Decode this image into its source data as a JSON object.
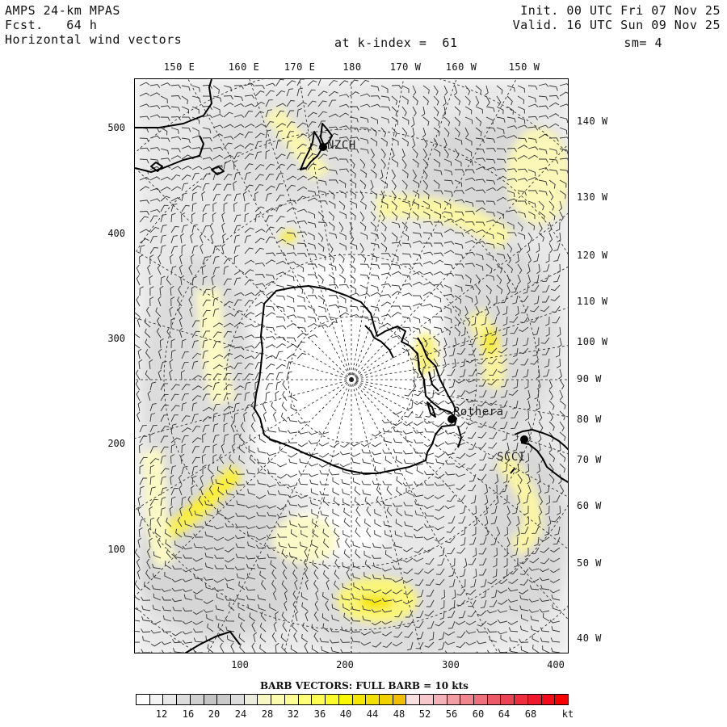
{
  "header": {
    "model": "AMPS 24-km MPAS",
    "forecast_label": "Fcst.",
    "forecast_value": "64 h",
    "field": "Horizontal wind vectors",
    "init": "Init. 00 UTC Fri 07 Nov 25",
    "valid": "Valid. 16 UTC Sun 09 Nov 25",
    "level": "at k-index =  61",
    "smoothing": "sm= 4"
  },
  "longitude_top": [
    "150 E",
    "160 E",
    "170 E",
    "180",
    "170 W",
    "160 W",
    "150 W"
  ],
  "longitude_right": [
    "140 W",
    "130 W",
    "120 W",
    "110 W",
    "100 W",
    "90 W",
    "80 W",
    "70 W",
    "60 W",
    "50 W",
    "40 W"
  ],
  "grid_y_ticks": [
    "500",
    "400",
    "300",
    "200",
    "100"
  ],
  "grid_x_ticks": [
    "100",
    "200",
    "300",
    "400"
  ],
  "stations": [
    {
      "id": "NZCH",
      "label": "NZCH"
    },
    {
      "id": "Rothera",
      "label": "Rothera"
    },
    {
      "id": "SCCI",
      "label": "SCCI"
    }
  ],
  "legend": {
    "title": "BARB VECTORS:  FULL BARB = 10 kts",
    "labels": [
      "12",
      "16",
      "20",
      "24",
      "28",
      "32",
      "36",
      "40",
      "44",
      "48",
      "52",
      "56",
      "60",
      "64",
      "68",
      "kt"
    ],
    "colors": [
      "#ffffff",
      "#f4f4f4",
      "#e8e8e8",
      "#dcdcdc",
      "#d0d0d0",
      "#c4c4c4",
      "#cacaca",
      "#dcdcdc",
      "#ececdc",
      "#f7f7c4",
      "#fbfbb0",
      "#fdfd96",
      "#ffff78",
      "#fefe50",
      "#fcfc28",
      "#f8f800",
      "#f4e800",
      "#f1e100",
      "#f0d200",
      "#f0c000",
      "#f8dfe0",
      "#f6c8cc",
      "#f4b2b8",
      "#f29ca4",
      "#f08690",
      "#ee707c",
      "#ec5a68",
      "#ea4454",
      "#ee2e40",
      "#f0182c",
      "#f40a18",
      "#f80000"
    ]
  }
}
